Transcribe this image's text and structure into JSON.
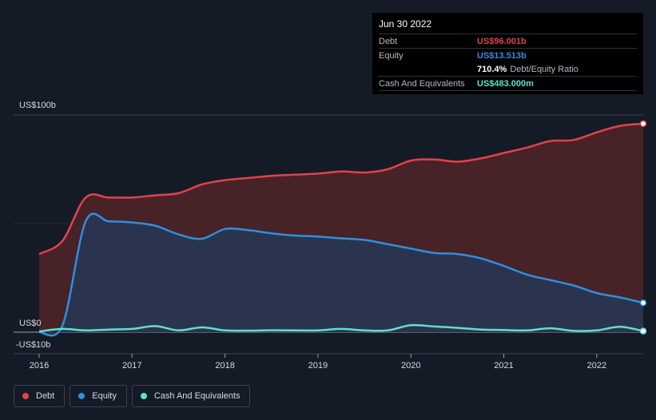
{
  "tooltip": {
    "date": "Jun 30 2022",
    "debt_label": "Debt",
    "debt_value": "US$96.001b",
    "equity_label": "Equity",
    "equity_value": "US$13.513b",
    "ratio_value": "710.4%",
    "ratio_label": "Debt/Equity Ratio",
    "cash_label": "Cash And Equivalents",
    "cash_value": "US$483.000m"
  },
  "legend": [
    {
      "label": "Debt",
      "color": "#e2424b"
    },
    {
      "label": "Equity",
      "color": "#2e8fe0"
    },
    {
      "label": "Cash And Equivalents",
      "color": "#5fe0cf"
    }
  ],
  "chart_data": {
    "type": "area",
    "y_tick_labels": [
      "US$100b",
      "US$0",
      "-US$10b"
    ],
    "ylim": [
      -10,
      100
    ],
    "xlim": [
      2016.0,
      2022.5
    ],
    "x_tick_labels": [
      "2016",
      "2017",
      "2018",
      "2019",
      "2020",
      "2021",
      "2022"
    ],
    "x_ticks": [
      2016,
      2017,
      2018,
      2019,
      2020,
      2021,
      2022
    ],
    "series": [
      {
        "name": "Debt",
        "color": "#e2424b",
        "fill": "#4a2327",
        "x": [
          2016.0,
          2016.25,
          2016.5,
          2016.75,
          2017.0,
          2017.25,
          2017.5,
          2017.75,
          2018.0,
          2018.25,
          2018.5,
          2018.75,
          2019.0,
          2019.25,
          2019.5,
          2019.75,
          2020.0,
          2020.25,
          2020.5,
          2020.75,
          2021.0,
          2021.25,
          2021.5,
          2021.75,
          2022.0,
          2022.25,
          2022.5
        ],
        "values": [
          36,
          42,
          62,
          62,
          62,
          63,
          64,
          68,
          70,
          71,
          72,
          72.5,
          73,
          74,
          73.5,
          75,
          79,
          79.5,
          78.5,
          80,
          82.5,
          85,
          88,
          88.5,
          92,
          95,
          96
        ]
      },
      {
        "name": "Equity",
        "color": "#2e8fe0",
        "fill": "#2a3650",
        "x": [
          2016.0,
          2016.25,
          2016.5,
          2016.75,
          2017.0,
          2017.25,
          2017.5,
          2017.75,
          2018.0,
          2018.25,
          2018.5,
          2018.75,
          2019.0,
          2019.25,
          2019.5,
          2019.75,
          2020.0,
          2020.25,
          2020.5,
          2020.75,
          2021.0,
          2021.25,
          2021.5,
          2021.75,
          2022.0,
          2022.25,
          2022.5
        ],
        "values": [
          0,
          3,
          51,
          51,
          50.5,
          49,
          45,
          43,
          47.5,
          47,
          45.5,
          44.5,
          44,
          43.2,
          42.5,
          40.5,
          38.5,
          36.5,
          36,
          34,
          30.5,
          26.5,
          24,
          21.5,
          18,
          16,
          13.5
        ]
      },
      {
        "name": "Cash And Equivalents",
        "color": "#5fe0cf",
        "fill": "none",
        "x": [
          2016.0,
          2016.25,
          2016.5,
          2016.75,
          2017.0,
          2017.25,
          2017.5,
          2017.75,
          2018.0,
          2018.25,
          2018.5,
          2018.75,
          2019.0,
          2019.25,
          2019.5,
          2019.75,
          2020.0,
          2020.25,
          2020.5,
          2020.75,
          2021.0,
          2021.25,
          2021.5,
          2021.75,
          2022.0,
          2022.25,
          2022.5
        ],
        "values": [
          0.3,
          1.5,
          0.8,
          1.2,
          1.5,
          2.8,
          0.8,
          2.2,
          0.8,
          0.7,
          0.9,
          0.8,
          0.8,
          1.5,
          0.8,
          0.8,
          3.2,
          2.6,
          2.0,
          1.2,
          1.0,
          0.8,
          1.8,
          0.6,
          0.8,
          2.5,
          0.5
        ]
      }
    ]
  }
}
